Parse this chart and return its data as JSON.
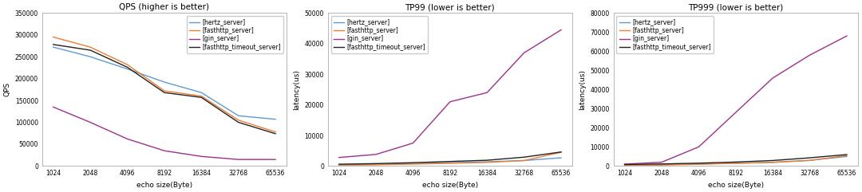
{
  "x_values": [
    1024,
    2048,
    4096,
    8192,
    16384,
    32768,
    65536
  ],
  "qps": {
    "title": "QPS (higher is better)",
    "ylabel": "QPS",
    "xlabel": "echo size(Byte)",
    "hertz": [
      272000,
      250000,
      222000,
      192000,
      168000,
      115000,
      107000
    ],
    "fasthttp": [
      295000,
      272000,
      232000,
      172000,
      160000,
      105000,
      78000
    ],
    "gin": [
      135000,
      100000,
      62000,
      35000,
      22000,
      15000,
      15000
    ],
    "fasthttp_timeout": [
      278000,
      265000,
      226000,
      168000,
      157000,
      100000,
      74000
    ],
    "ylim": [
      0,
      350000
    ]
  },
  "tp99": {
    "title": "TP99 (lower is better)",
    "ylabel": "latency(us)",
    "xlabel": "echo size(Byte)",
    "hertz": [
      400,
      500,
      800,
      1100,
      1400,
      1800,
      2700
    ],
    "fasthttp": [
      350,
      450,
      650,
      900,
      1200,
      1800,
      4500
    ],
    "gin": [
      2800,
      3800,
      7500,
      21000,
      24000,
      37000,
      44500
    ],
    "fasthttp_timeout": [
      600,
      800,
      1100,
      1500,
      1900,
      2900,
      4600
    ],
    "ylim": [
      0,
      50000
    ]
  },
  "tp999": {
    "title": "TP999 (lower is better)",
    "ylabel": "latency(us)",
    "xlabel": "echo size(Byte)",
    "hertz": [
      500,
      700,
      1100,
      1500,
      2000,
      3000,
      5000
    ],
    "fasthttp": [
      450,
      600,
      950,
      1400,
      1900,
      2900,
      5500
    ],
    "gin": [
      1000,
      2000,
      10000,
      28000,
      46000,
      58000,
      68000
    ],
    "fasthttp_timeout": [
      800,
      1100,
      1500,
      2100,
      2900,
      4300,
      6000
    ],
    "ylim": [
      0,
      80000
    ]
  },
  "colors": {
    "hertz": "#5b9bd5",
    "fasthttp": "#ed7d31",
    "gin": "#9e2f8b",
    "fasthttp_timeout": "#222222"
  },
  "legend_labels": {
    "hertz": "[hertz_server]",
    "fasthttp": "[fasthttp_server]",
    "gin": "[gin_server]",
    "fasthttp_timeout": "[fasthttp_timeout_server]"
  },
  "series_keys": [
    "hertz",
    "fasthttp",
    "gin",
    "fasthttp_timeout"
  ],
  "chart_keys": [
    "qps",
    "tp99",
    "tp999"
  ]
}
